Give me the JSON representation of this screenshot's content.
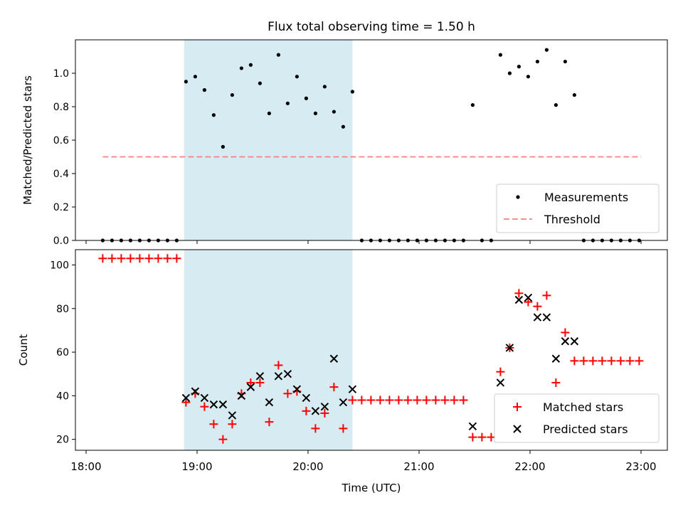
{
  "title": "Flux total observing time = 1.50 h",
  "colors": {
    "shade": "#add8e6",
    "threshold": "#ff7f7f",
    "matched": "#ff0000",
    "predicted": "#000000",
    "measure": "#000000"
  },
  "chart_data": [
    {
      "type": "scatter",
      "ylabel": "Matched/Predicted stars",
      "xlabel": "",
      "xlim": [
        "18:00",
        "23:00"
      ],
      "ylim": [
        0,
        1.2
      ],
      "yticks": [
        0.0,
        0.2,
        0.4,
        0.6,
        0.8,
        1.0
      ],
      "shaded_region": {
        "x0": "18:53",
        "x1": "20:24"
      },
      "legend": {
        "placement": "lower-right",
        "entries": [
          "Measurements",
          "Threshold"
        ]
      },
      "threshold": {
        "name": "Threshold",
        "y": 0.5,
        "x0": "18:09",
        "x1": "23:00"
      },
      "series": [
        {
          "name": "Measurements",
          "x": [
            "18:09",
            "18:14",
            "18:19",
            "18:24",
            "18:29",
            "18:34",
            "18:39",
            "18:44",
            "18:49",
            "18:54",
            "18:59",
            "19:04",
            "19:09",
            "19:14",
            "19:19",
            "19:24",
            "19:29",
            "19:34",
            "19:39",
            "19:44",
            "19:49",
            "19:54",
            "19:59",
            "20:04",
            "20:09",
            "20:14",
            "20:19",
            "20:24",
            "20:29",
            "20:34",
            "20:39",
            "20:44",
            "20:49",
            "20:54",
            "20:59",
            "21:04",
            "21:09",
            "21:14",
            "21:19",
            "21:24",
            "21:29",
            "21:34",
            "21:39",
            "21:44",
            "21:49",
            "21:54",
            "21:59",
            "22:04",
            "22:09",
            "22:14",
            "22:19",
            "22:24",
            "22:29",
            "22:34",
            "22:39",
            "22:44",
            "22:49",
            "22:54",
            "22:59"
          ],
          "y": [
            0,
            0,
            0,
            0,
            0,
            0,
            0,
            0,
            0,
            0.95,
            0.98,
            0.9,
            0.75,
            0.56,
            0.87,
            1.03,
            1.05,
            0.94,
            0.76,
            1.11,
            0.82,
            0.98,
            0.85,
            0.76,
            0.92,
            0.77,
            0.68,
            0.89,
            0,
            0,
            0,
            0,
            0,
            0,
            0,
            0,
            0,
            0,
            0,
            0,
            0.81,
            0,
            0,
            1.11,
            1.0,
            1.04,
            0.98,
            1.07,
            1.14,
            0.81,
            1.07,
            0.87,
            0,
            0,
            0,
            0,
            0,
            0,
            0
          ]
        }
      ]
    },
    {
      "type": "scatter",
      "ylabel": "Count",
      "xlabel": "Time (UTC)",
      "xlim": [
        "18:00",
        "23:00"
      ],
      "xticks": [
        "18:00",
        "19:00",
        "20:00",
        "21:00",
        "22:00",
        "23:00"
      ],
      "ylim": [
        15,
        107
      ],
      "yticks": [
        20,
        40,
        60,
        80,
        100
      ],
      "shaded_region": {
        "x0": "18:53",
        "x1": "20:24"
      },
      "legend": {
        "placement": "lower-right",
        "entries": [
          "Matched stars",
          "Predicted stars"
        ]
      },
      "series": [
        {
          "name": "Matched stars",
          "x": [
            "18:09",
            "18:14",
            "18:19",
            "18:24",
            "18:29",
            "18:34",
            "18:39",
            "18:44",
            "18:49",
            "18:54",
            "18:59",
            "19:04",
            "19:09",
            "19:14",
            "19:19",
            "19:24",
            "19:29",
            "19:34",
            "19:39",
            "19:44",
            "19:49",
            "19:54",
            "19:59",
            "20:04",
            "20:09",
            "20:14",
            "20:19",
            "20:24",
            "20:29",
            "20:34",
            "20:39",
            "20:44",
            "20:49",
            "20:54",
            "20:59",
            "21:04",
            "21:09",
            "21:14",
            "21:19",
            "21:24",
            "21:29",
            "21:34",
            "21:39",
            "21:44",
            "21:49",
            "21:54",
            "21:59",
            "22:04",
            "22:09",
            "22:14",
            "22:19",
            "22:24",
            "22:29",
            "22:34",
            "22:39",
            "22:44",
            "22:49",
            "22:54",
            "22:59"
          ],
          "y": [
            103,
            103,
            103,
            103,
            103,
            103,
            103,
            103,
            103,
            37,
            41,
            35,
            27,
            20,
            27,
            41,
            46,
            46,
            28,
            54,
            41,
            42,
            33,
            25,
            32,
            44,
            25,
            38,
            38,
            38,
            38,
            38,
            38,
            38,
            38,
            38,
            38,
            38,
            38,
            38,
            21,
            21,
            21,
            51,
            62,
            87,
            83,
            81,
            86,
            46,
            69,
            56,
            56,
            56,
            56,
            56,
            56,
            56,
            56
          ]
        },
        {
          "name": "Predicted stars",
          "x": [
            "18:54",
            "18:59",
            "19:04",
            "19:09",
            "19:14",
            "19:19",
            "19:24",
            "19:29",
            "19:34",
            "19:39",
            "19:44",
            "19:49",
            "19:54",
            "19:59",
            "20:04",
            "20:09",
            "20:14",
            "20:19",
            "20:24",
            "21:29",
            "21:44",
            "21:49",
            "21:54",
            "21:59",
            "22:04",
            "22:09",
            "22:14",
            "22:19",
            "22:24"
          ],
          "y": [
            39,
            42,
            39,
            36,
            36,
            31,
            40,
            44,
            49,
            37,
            49,
            50,
            43,
            39,
            33,
            35,
            57,
            37,
            43,
            26,
            46,
            62,
            84,
            85,
            76,
            76,
            57,
            65,
            65
          ]
        }
      ]
    }
  ]
}
